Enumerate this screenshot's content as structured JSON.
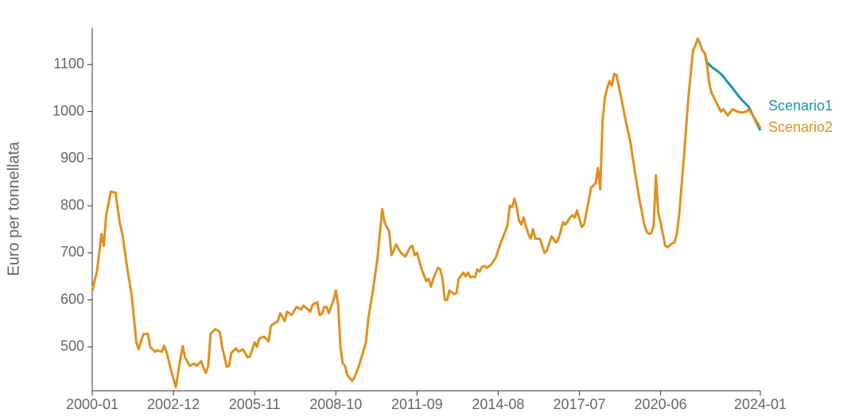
{
  "chart_data": {
    "type": "line",
    "y_label": "Euro per tonnellata",
    "x": [
      "2000-01",
      "2000-02",
      "2000-03",
      "2000-05",
      "2000-06",
      "2000-07",
      "2000-09",
      "2000-11",
      "2001-01",
      "2001-02",
      "2001-04",
      "2001-06",
      "2001-08",
      "2001-09",
      "2001-11",
      "2002-01",
      "2002-02",
      "2002-04",
      "2002-05",
      "2002-07",
      "2002-08",
      "2002-09",
      "2002-11",
      "2003-01",
      "2003-03",
      "2003-04",
      "2003-05",
      "2003-07",
      "2003-09",
      "2003-10",
      "2003-12",
      "2004-01",
      "2004-02",
      "2004-03",
      "2004-04",
      "2004-06",
      "2004-08",
      "2004-09",
      "2004-11",
      "2004-12",
      "2005-01",
      "2005-03",
      "2005-04",
      "2005-06",
      "2005-08",
      "2005-09",
      "2005-11",
      "2005-12",
      "2006-01",
      "2006-03",
      "2006-05",
      "2006-06",
      "2006-09",
      "2006-10",
      "2006-12",
      "2007-01",
      "2007-03",
      "2007-05",
      "2007-07",
      "2007-08",
      "2007-10",
      "2007-11",
      "2007-12",
      "2008-02",
      "2008-03",
      "2008-04",
      "2008-05",
      "2008-06",
      "2008-07",
      "2008-09",
      "2008-10",
      "2008-11",
      "2008-12",
      "2009-01",
      "2009-02",
      "2009-03",
      "2009-05",
      "2009-06",
      "2009-08",
      "2009-11",
      "2009-12",
      "2010-02",
      "2010-04",
      "2010-06",
      "2010-07",
      "2010-09",
      "2010-10",
      "2010-11",
      "2010-12",
      "2011-02",
      "2011-04",
      "2011-06",
      "2011-07",
      "2011-08",
      "2011-09",
      "2011-11",
      "2012-01",
      "2012-02",
      "2012-03",
      "2012-04",
      "2012-06",
      "2012-07",
      "2012-08",
      "2012-09",
      "2012-10",
      "2012-11",
      "2013-01",
      "2013-02",
      "2013-03",
      "2013-05",
      "2013-06",
      "2013-07",
      "2013-08",
      "2013-09",
      "2013-10",
      "2013-11",
      "2013-12",
      "2014-01",
      "2014-02",
      "2014-03",
      "2014-05",
      "2014-06",
      "2014-07",
      "2014-09",
      "2014-11",
      "2014-12",
      "2015-01",
      "2015-02",
      "2015-03",
      "2015-04",
      "2015-05",
      "2015-06",
      "2015-07",
      "2015-08",
      "2015-09",
      "2015-10",
      "2015-11",
      "2015-12",
      "2016-02",
      "2016-03",
      "2016-04",
      "2016-05",
      "2016-07",
      "2016-09",
      "2016-10",
      "2016-12",
      "2017-01",
      "2017-03",
      "2017-04",
      "2017-05",
      "2017-06",
      "2017-08",
      "2017-09",
      "2017-11",
      "2017-12",
      "2018-02",
      "2018-03",
      "2018-04",
      "2018-05",
      "2018-06",
      "2018-07",
      "2018-08",
      "2018-09",
      "2018-10",
      "2018-11",
      "2019-01",
      "2019-03",
      "2019-05",
      "2019-07",
      "2019-09",
      "2019-11",
      "2019-12",
      "2020-01",
      "2020-02",
      "2020-03",
      "2020-04",
      "2020-05",
      "2020-06",
      "2020-08",
      "2020-09",
      "2020-11",
      "2020-12",
      "2021-01",
      "2021-02",
      "2021-04",
      "2021-06",
      "2021-08",
      "2021-09",
      "2021-10",
      "2021-11",
      "2021-12",
      "2022-01",
      "2022-02",
      "2022-03",
      "2022-04",
      "2022-06",
      "2022-08",
      "2022-09",
      "2022-11",
      "2023-01",
      "2023-03",
      "2023-05",
      "2023-07",
      "2023-08",
      "2023-10",
      "2023-12",
      "2024-01"
    ],
    "series": [
      {
        "name": "Scenario1",
        "color": "#1b97a9",
        "values": [
          null,
          null,
          null,
          null,
          null,
          null,
          null,
          null,
          null,
          null,
          null,
          null,
          null,
          null,
          null,
          null,
          null,
          null,
          null,
          null,
          null,
          null,
          null,
          null,
          null,
          null,
          null,
          null,
          null,
          null,
          null,
          null,
          null,
          null,
          null,
          null,
          null,
          null,
          null,
          null,
          null,
          null,
          null,
          null,
          null,
          null,
          null,
          null,
          null,
          null,
          null,
          null,
          null,
          null,
          null,
          null,
          null,
          null,
          null,
          null,
          null,
          null,
          null,
          null,
          null,
          null,
          null,
          null,
          null,
          null,
          null,
          null,
          null,
          null,
          null,
          null,
          null,
          null,
          null,
          null,
          null,
          null,
          null,
          null,
          null,
          null,
          null,
          null,
          null,
          null,
          null,
          null,
          null,
          null,
          null,
          null,
          null,
          null,
          null,
          null,
          null,
          null,
          null,
          null,
          null,
          null,
          null,
          null,
          null,
          null,
          null,
          null,
          null,
          null,
          null,
          null,
          null,
          null,
          null,
          null,
          null,
          null,
          null,
          null,
          null,
          null,
          null,
          null,
          null,
          null,
          null,
          null,
          null,
          null,
          null,
          null,
          null,
          null,
          null,
          null,
          null,
          null,
          null,
          null,
          null,
          null,
          null,
          null,
          null,
          null,
          null,
          null,
          null,
          null,
          null,
          null,
          null,
          null,
          null,
          null,
          null,
          null,
          null,
          null,
          null,
          null,
          null,
          null,
          null,
          null,
          null,
          null,
          null,
          null,
          null,
          null,
          null,
          null,
          null,
          null,
          null,
          null,
          null,
          null,
          null,
          null,
          null,
          null,
          null,
          null,
          null,
          1125,
          1105,
          1100,
          1095,
          1088,
          1080,
          1075,
          1062,
          1050,
          1037,
          1025,
          1015,
          1010,
          990,
          970,
          960
        ]
      },
      {
        "name": "Scenario2",
        "color": "#e0901e",
        "values": [
          620,
          640,
          660,
          740,
          715,
          780,
          830,
          828,
          760,
          740,
          670,
          610,
          510,
          495,
          527,
          528,
          500,
          490,
          493,
          490,
          503,
          490,
          450,
          415,
          475,
          502,
          478,
          460,
          465,
          460,
          470,
          455,
          445,
          460,
          528,
          538,
          532,
          500,
          458,
          460,
          488,
          497,
          490,
          495,
          478,
          480,
          510,
          500,
          518,
          522,
          512,
          545,
          555,
          572,
          555,
          575,
          568,
          585,
          580,
          588,
          580,
          575,
          590,
          595,
          568,
          570,
          585,
          585,
          572,
          600,
          620,
          590,
          500,
          465,
          460,
          440,
          428,
          435,
          460,
          510,
          560,
          620,
          690,
          793,
          765,
          745,
          695,
          705,
          718,
          700,
          692,
          712,
          715,
          695,
          700,
          665,
          640,
          645,
          628,
          645,
          668,
          665,
          645,
          600,
          600,
          620,
          612,
          615,
          645,
          658,
          650,
          658,
          648,
          650,
          648,
          665,
          660,
          670,
          672,
          668,
          675,
          683,
          690,
          720,
          745,
          758,
          800,
          797,
          815,
          797,
          768,
          760,
          775,
          755,
          740,
          730,
          750,
          730,
          730,
          715,
          700,
          705,
          735,
          722,
          730,
          765,
          760,
          775,
          780,
          775,
          790,
          755,
          760,
          810,
          838,
          848,
          880,
          835,
          980,
          1030,
          1050,
          1065,
          1055,
          1080,
          1078,
          1030,
          980,
          935,
          870,
          810,
          760,
          745,
          740,
          742,
          758,
          865,
          785,
          765,
          715,
          712,
          720,
          722,
          740,
          780,
          900,
          1030,
          1130,
          1140,
          1155,
          1145,
          1130,
          1125,
          1100,
          1060,
          1040,
          1020,
          1000,
          1005,
          992,
          1005,
          1000,
          998,
          1000,
          1005,
          990,
          975,
          965
        ]
      }
    ],
    "xlim": [
      "2000-01",
      "2024-01"
    ],
    "xticks": [
      "2000-01",
      "2002-12",
      "2005-11",
      "2008-10",
      "2011-09",
      "2014-08",
      "2017-07",
      "2020-06",
      "2024-01"
    ],
    "ylim": [
      407,
      1178
    ],
    "yticks": [
      500,
      600,
      700,
      800,
      900,
      1000,
      1100
    ]
  }
}
